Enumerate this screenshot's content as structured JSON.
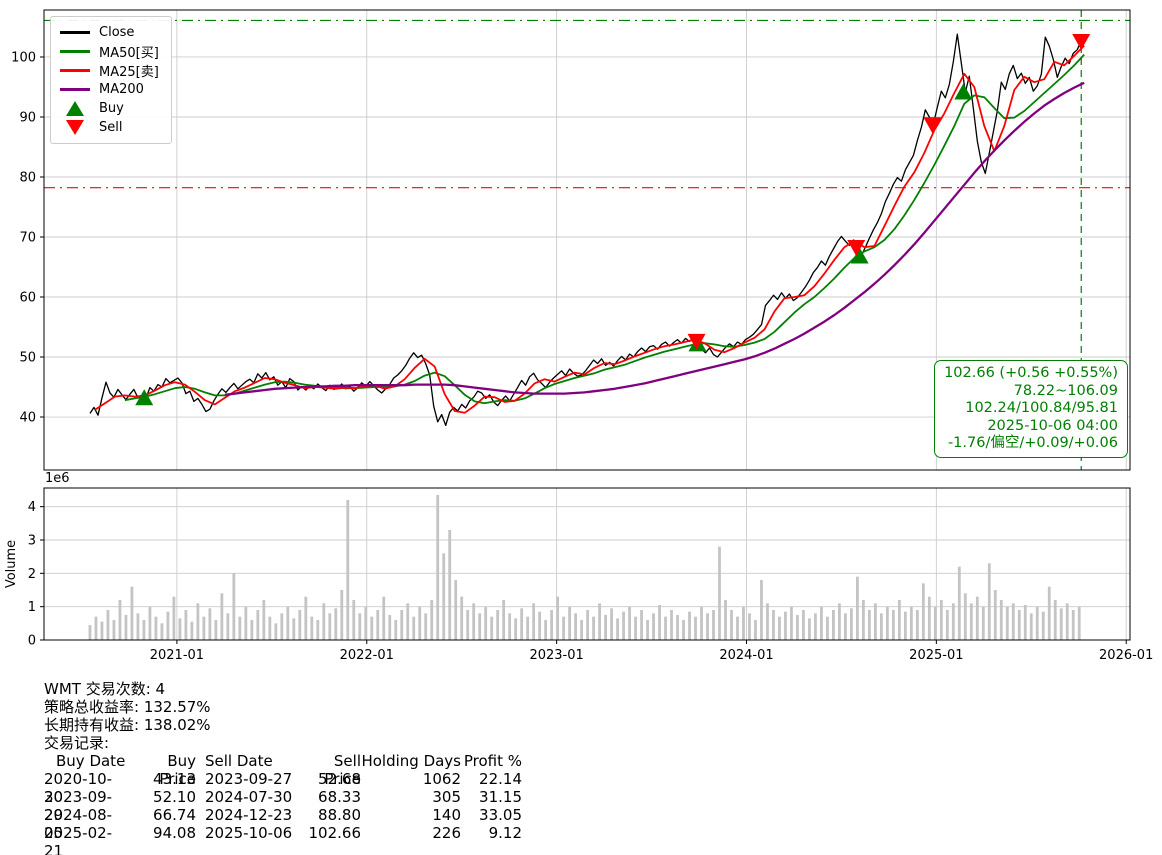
{
  "chart_data": {
    "type": "line",
    "title": "",
    "symbol": "WMT",
    "grid_color": "#cccccc",
    "x_axis": {
      "domain": [
        2020.3,
        2026.02
      ],
      "tick_values": [
        2021,
        2022,
        2023,
        2024,
        2025,
        2026
      ],
      "tick_labels": [
        "2021-01",
        "2022-01",
        "2023-01",
        "2024-01",
        "2025-01",
        "2026-01"
      ]
    },
    "price_axis": {
      "domain": [
        31.17,
        107.83
      ],
      "tick_values": [
        40,
        50,
        60,
        70,
        80,
        90,
        100
      ]
    },
    "volume_axis": {
      "label": "Volume",
      "offset_label": "1e6",
      "domain": [
        0,
        4.56
      ],
      "tick_values": [
        0,
        1,
        2,
        3,
        4
      ]
    },
    "ref_lines": {
      "upper_green_dashdot": 106.09,
      "lower_red_dashdot": 78.22,
      "vline_t": 2025.7632,
      "green": "#008000",
      "red": "#ff0000"
    },
    "series": [
      {
        "name": "Close",
        "color": "#000000",
        "width": 1.3,
        "t0": 2020.5421,
        "dt": 0.0210526,
        "values": [
          40.6,
          41.6,
          40.3,
          43.2,
          45.8,
          44.0,
          43.3,
          44.6,
          43.7,
          42.9,
          43.8,
          44.6,
          43.2,
          43.6,
          43.1,
          44.9,
          44.3,
          45.4,
          45.0,
          46.4,
          45.7,
          46.1,
          46.5,
          45.7,
          43.9,
          44.3,
          42.6,
          43.1,
          42.1,
          40.9,
          41.3,
          42.7,
          43.8,
          44.7,
          44.1,
          44.9,
          45.6,
          44.7,
          45.3,
          45.9,
          46.3,
          45.7,
          47.2,
          46.5,
          47.4,
          46.2,
          46.7,
          45.3,
          45.9,
          44.9,
          46.4,
          45.9,
          44.5,
          45.1,
          44.5,
          45.2,
          44.7,
          45.5,
          44.9,
          44.4,
          45.3,
          44.6,
          44.9,
          45.5,
          44.7,
          45.1,
          44.3,
          44.9,
          45.7,
          45.1,
          45.9,
          45.2,
          44.5,
          44.0,
          44.7,
          45.4,
          46.5,
          47.0,
          47.7,
          48.6,
          49.8,
          50.7,
          49.9,
          50.3,
          48.9,
          47.0,
          41.8,
          39.2,
          40.4,
          38.6,
          40.8,
          41.6,
          41.0,
          42.1,
          41.5,
          42.7,
          43.3,
          44.3,
          44.0,
          43.1,
          43.7,
          42.5,
          41.9,
          42.8,
          43.5,
          42.7,
          43.8,
          44.9,
          46.1,
          45.3,
          46.7,
          47.3,
          46.2,
          45.6,
          44.9,
          45.8,
          46.5,
          47.1,
          47.7,
          46.9,
          48.0,
          47.3,
          46.8,
          47.0,
          47.7,
          48.6,
          49.5,
          48.9,
          49.7,
          48.6,
          49.1,
          48.5,
          49.4,
          50.1,
          49.5,
          50.5,
          50.0,
          50.9,
          51.5,
          50.9,
          51.7,
          51.9,
          51.3,
          52.1,
          52.5,
          51.8,
          52.4,
          52.9,
          52.3,
          53.1,
          52.6,
          53.2,
          52.4,
          51.3,
          50.7,
          51.5,
          50.4,
          50.0,
          50.8,
          51.6,
          52.2,
          51.7,
          52.5,
          52.1,
          52.9,
          53.3,
          53.8,
          54.6,
          55.4,
          58.6,
          59.4,
          60.3,
          59.6,
          60.7,
          59.8,
          60.5,
          59.4,
          59.9,
          60.8,
          61.7,
          62.8,
          64.1,
          64.9,
          66.0,
          65.3,
          66.8,
          68.0,
          69.2,
          70.1,
          69.3,
          68.6,
          69.5,
          67.8,
          66.9,
          68.3,
          69.8,
          71.2,
          72.4,
          73.9,
          75.9,
          77.3,
          78.8,
          79.9,
          79.3,
          81.2,
          82.4,
          83.6,
          86.1,
          88.3,
          91.2,
          90.0,
          88.8,
          91.6,
          94.3,
          93.2,
          95.4,
          99.2,
          103.8,
          99.0,
          94.1,
          96.8,
          91.5,
          86.0,
          82.5,
          80.6,
          84.0,
          87.5,
          91.0,
          95.8,
          94.6,
          97.2,
          98.6,
          96.4,
          97.3,
          95.6,
          96.6,
          94.3,
          95.2,
          97.1,
          103.3,
          101.8,
          99.6,
          96.6,
          98.4,
          99.8,
          98.9,
          100.6,
          101.2,
          102.7
        ]
      },
      {
        "name": "MA50[买]",
        "color": "#008000",
        "width": 1.8,
        "t0": 2020.7263,
        "dt": 0.0526316,
        "values": [
          42.8,
          43.1,
          43.4,
          43.8,
          44.3,
          44.8,
          45.0,
          44.7,
          44.1,
          43.6,
          43.6,
          43.9,
          44.4,
          44.9,
          45.4,
          45.8,
          45.9,
          45.7,
          45.4,
          45.2,
          45.0,
          44.9,
          44.8,
          44.8,
          44.9,
          45.0,
          45.0,
          45.1,
          45.4,
          46.0,
          46.9,
          47.4,
          46.8,
          45.3,
          43.7,
          42.6,
          42.3,
          42.6,
          42.8,
          42.7,
          43.1,
          43.9,
          44.8,
          45.5,
          46.0,
          46.5,
          46.9,
          47.3,
          47.9,
          48.3,
          48.7,
          49.3,
          49.9,
          50.4,
          50.9,
          51.3,
          51.7,
          52.1,
          52.3,
          52.1,
          51.8,
          51.7,
          52.0,
          52.4,
          53.0,
          54.2,
          55.8,
          57.4,
          58.8,
          60.0,
          61.5,
          63.1,
          64.9,
          66.5,
          67.6,
          68.3,
          69.5,
          71.3,
          73.6,
          76.2,
          79.0,
          82.0,
          85.2,
          88.5,
          92.2,
          93.6,
          93.3,
          91.5,
          89.8,
          89.9,
          91.0,
          92.5,
          94.0,
          95.5,
          97.0,
          98.6,
          100.4
        ]
      },
      {
        "name": "MA25[卖]",
        "color": "#ff0000",
        "width": 1.8,
        "t0": 2020.5684,
        "dt": 0.0526316,
        "values": [
          41.2,
          42.3,
          43.4,
          43.6,
          43.4,
          43.6,
          44.4,
          45.3,
          45.8,
          45.4,
          44.2,
          42.8,
          42.1,
          43.2,
          44.3,
          44.9,
          45.7,
          46.5,
          46.3,
          45.7,
          45.3,
          44.8,
          45.0,
          44.9,
          44.7,
          44.9,
          44.8,
          45.1,
          45.3,
          44.7,
          45.1,
          46.3,
          48.2,
          49.7,
          48.4,
          43.8,
          41.0,
          40.7,
          41.9,
          43.4,
          43.3,
          42.5,
          42.7,
          43.9,
          45.6,
          46.3,
          45.9,
          46.7,
          47.4,
          47.1,
          48.2,
          49.0,
          48.8,
          49.4,
          50.1,
          50.7,
          51.3,
          51.8,
          52.1,
          52.5,
          52.9,
          52.3,
          51.2,
          50.8,
          51.5,
          52.4,
          53.2,
          54.6,
          57.6,
          59.8,
          60.0,
          60.3,
          61.8,
          63.9,
          66.2,
          68.3,
          69.4,
          68.3,
          68.5,
          71.8,
          75.2,
          78.4,
          80.8,
          84.0,
          87.8,
          90.6,
          94.0,
          97.2,
          95.0,
          88.5,
          84.3,
          88.5,
          94.5,
          96.7,
          95.8,
          96.3,
          99.2,
          98.6,
          100.2,
          101.9
        ]
      },
      {
        "name": "MA200",
        "color": "#800080",
        "width": 2.3,
        "t0": 2021.2526,
        "dt": 0.0526316,
        "values": [
          43.7,
          43.9,
          44.1,
          44.3,
          44.5,
          44.7,
          44.8,
          44.9,
          45.0,
          45.1,
          45.1,
          45.2,
          45.2,
          45.3,
          45.3,
          45.3,
          45.3,
          45.3,
          45.3,
          45.4,
          45.4,
          45.4,
          45.4,
          45.3,
          45.1,
          44.9,
          44.7,
          44.5,
          44.3,
          44.1,
          44.0,
          43.9,
          43.9,
          43.9,
          43.9,
          44.0,
          44.1,
          44.3,
          44.5,
          44.7,
          45.0,
          45.3,
          45.6,
          46.0,
          46.4,
          46.8,
          47.2,
          47.6,
          48.0,
          48.4,
          48.8,
          49.2,
          49.6,
          50.1,
          50.7,
          51.4,
          52.2,
          53.0,
          53.9,
          54.9,
          55.9,
          57.0,
          58.2,
          59.5,
          60.8,
          62.2,
          63.7,
          65.3,
          67.0,
          68.8,
          70.7,
          72.7,
          74.7,
          76.7,
          78.7,
          80.7,
          82.6,
          84.4,
          86.1,
          87.7,
          89.2,
          90.6,
          91.9,
          93.0,
          94.0,
          94.9,
          95.7
        ]
      }
    ],
    "volume_bars": {
      "color": "#c4c4c4",
      "t0": 2020.5421,
      "dt": 0.0315789,
      "values": [
        0.45,
        0.7,
        0.55,
        0.9,
        0.6,
        1.2,
        0.75,
        1.6,
        0.8,
        0.6,
        1.0,
        0.7,
        0.5,
        0.85,
        1.3,
        0.65,
        0.9,
        0.55,
        1.1,
        0.7,
        0.95,
        0.6,
        1.4,
        0.8,
        2.0,
        0.7,
        1.0,
        0.6,
        0.9,
        1.2,
        0.7,
        0.5,
        0.8,
        1.0,
        0.65,
        0.9,
        1.3,
        0.7,
        0.6,
        1.1,
        0.8,
        0.95,
        1.5,
        4.2,
        1.2,
        0.8,
        1.0,
        0.7,
        0.9,
        1.3,
        0.75,
        0.6,
        0.9,
        1.1,
        0.7,
        1.0,
        0.8,
        1.2,
        4.35,
        2.6,
        3.3,
        1.8,
        1.3,
        0.9,
        1.1,
        0.8,
        1.0,
        0.7,
        0.9,
        1.2,
        0.8,
        0.65,
        0.95,
        0.7,
        1.1,
        0.85,
        0.6,
        0.9,
        1.3,
        0.7,
        1.0,
        0.8,
        0.6,
        0.9,
        0.7,
        1.1,
        0.75,
        0.95,
        0.65,
        0.85,
        1.0,
        0.7,
        0.9,
        0.6,
        0.8,
        1.05,
        0.7,
        0.9,
        0.75,
        0.6,
        0.85,
        0.7,
        1.0,
        0.8,
        0.9,
        2.8,
        1.2,
        0.9,
        0.7,
        1.0,
        0.8,
        0.6,
        1.8,
        1.1,
        0.9,
        0.7,
        0.85,
        1.0,
        0.75,
        0.9,
        0.65,
        0.8,
        1.0,
        0.7,
        0.9,
        1.1,
        0.8,
        0.95,
        1.9,
        1.2,
        0.9,
        1.1,
        0.8,
        1.0,
        0.9,
        1.2,
        0.85,
        1.0,
        0.9,
        1.7,
        1.3,
        1.0,
        1.2,
        0.9,
        1.1,
        2.2,
        1.4,
        1.1,
        1.3,
        1.0,
        2.3,
        1.5,
        1.2,
        1.0,
        1.1,
        0.9,
        1.05,
        0.8,
        1.0,
        0.85,
        1.6,
        1.2,
        0.95,
        1.1,
        0.9,
        1.0
      ]
    },
    "buy_markers": [
      {
        "t": 2020.828,
        "price": 43.13,
        "date": "2020-10-30"
      },
      {
        "t": 2023.742,
        "price": 52.1,
        "date": "2023-09-29"
      },
      {
        "t": 2024.596,
        "price": 66.74,
        "date": "2024-08-05"
      },
      {
        "t": 2025.142,
        "price": 94.08,
        "date": "2025-02-21"
      }
    ],
    "sell_markers": [
      {
        "t": 2023.737,
        "price": 52.68,
        "date": "2023-09-27"
      },
      {
        "t": 2024.578,
        "price": 68.33,
        "date": "2024-07-30"
      },
      {
        "t": 2024.979,
        "price": 88.8,
        "date": "2024-12-23"
      },
      {
        "t": 2025.763,
        "price": 102.66,
        "date": "2025-10-06"
      }
    ],
    "marker_colors": {
      "buy": "#008000",
      "sell": "#ff0000"
    }
  },
  "legend": {
    "items": [
      {
        "label": "Close",
        "color": "#000000",
        "marker": "line"
      },
      {
        "label": "MA50[买]",
        "color": "#008000",
        "marker": "line"
      },
      {
        "label": "MA25[卖]",
        "color": "#ff0000",
        "marker": "line"
      },
      {
        "label": "MA200",
        "color": "#800080",
        "marker": "line"
      },
      {
        "label": "Buy",
        "color": "#008000",
        "marker": "triangle-up"
      },
      {
        "label": "Sell",
        "color": "#ff0000",
        "marker": "triangle-down"
      }
    ]
  },
  "annotation": {
    "color": "#008000",
    "lines": [
      "102.66 (+0.56 +0.55%)",
      "78.22~106.09",
      "102.24/100.84/95.81",
      "2025-10-06 04:00",
      "-1.76/偏空/+0.09/+0.06"
    ]
  },
  "stats": {
    "lines": [
      "WMT 交易次数: 4",
      "策略总收益率: 132.57%",
      "长期持有收益: 138.02%",
      "交易记录:"
    ],
    "table": {
      "headers": [
        "Buy Date",
        "Buy Price",
        "Sell Date",
        "Sell Price",
        "Holding Days",
        "Profit %"
      ],
      "rows": [
        [
          "2020-10-30",
          "43.13",
          "2023-09-27",
          "52.68",
          "1062",
          "22.14"
        ],
        [
          "2023-09-29",
          "52.10",
          "2024-07-30",
          "68.33",
          "305",
          "31.15"
        ],
        [
          "2024-08-05",
          "66.74",
          "2024-12-23",
          "88.80",
          "140",
          "33.05"
        ],
        [
          "2025-02-21",
          "94.08",
          "2025-10-06",
          "102.66",
          "226",
          "9.12"
        ]
      ]
    }
  }
}
